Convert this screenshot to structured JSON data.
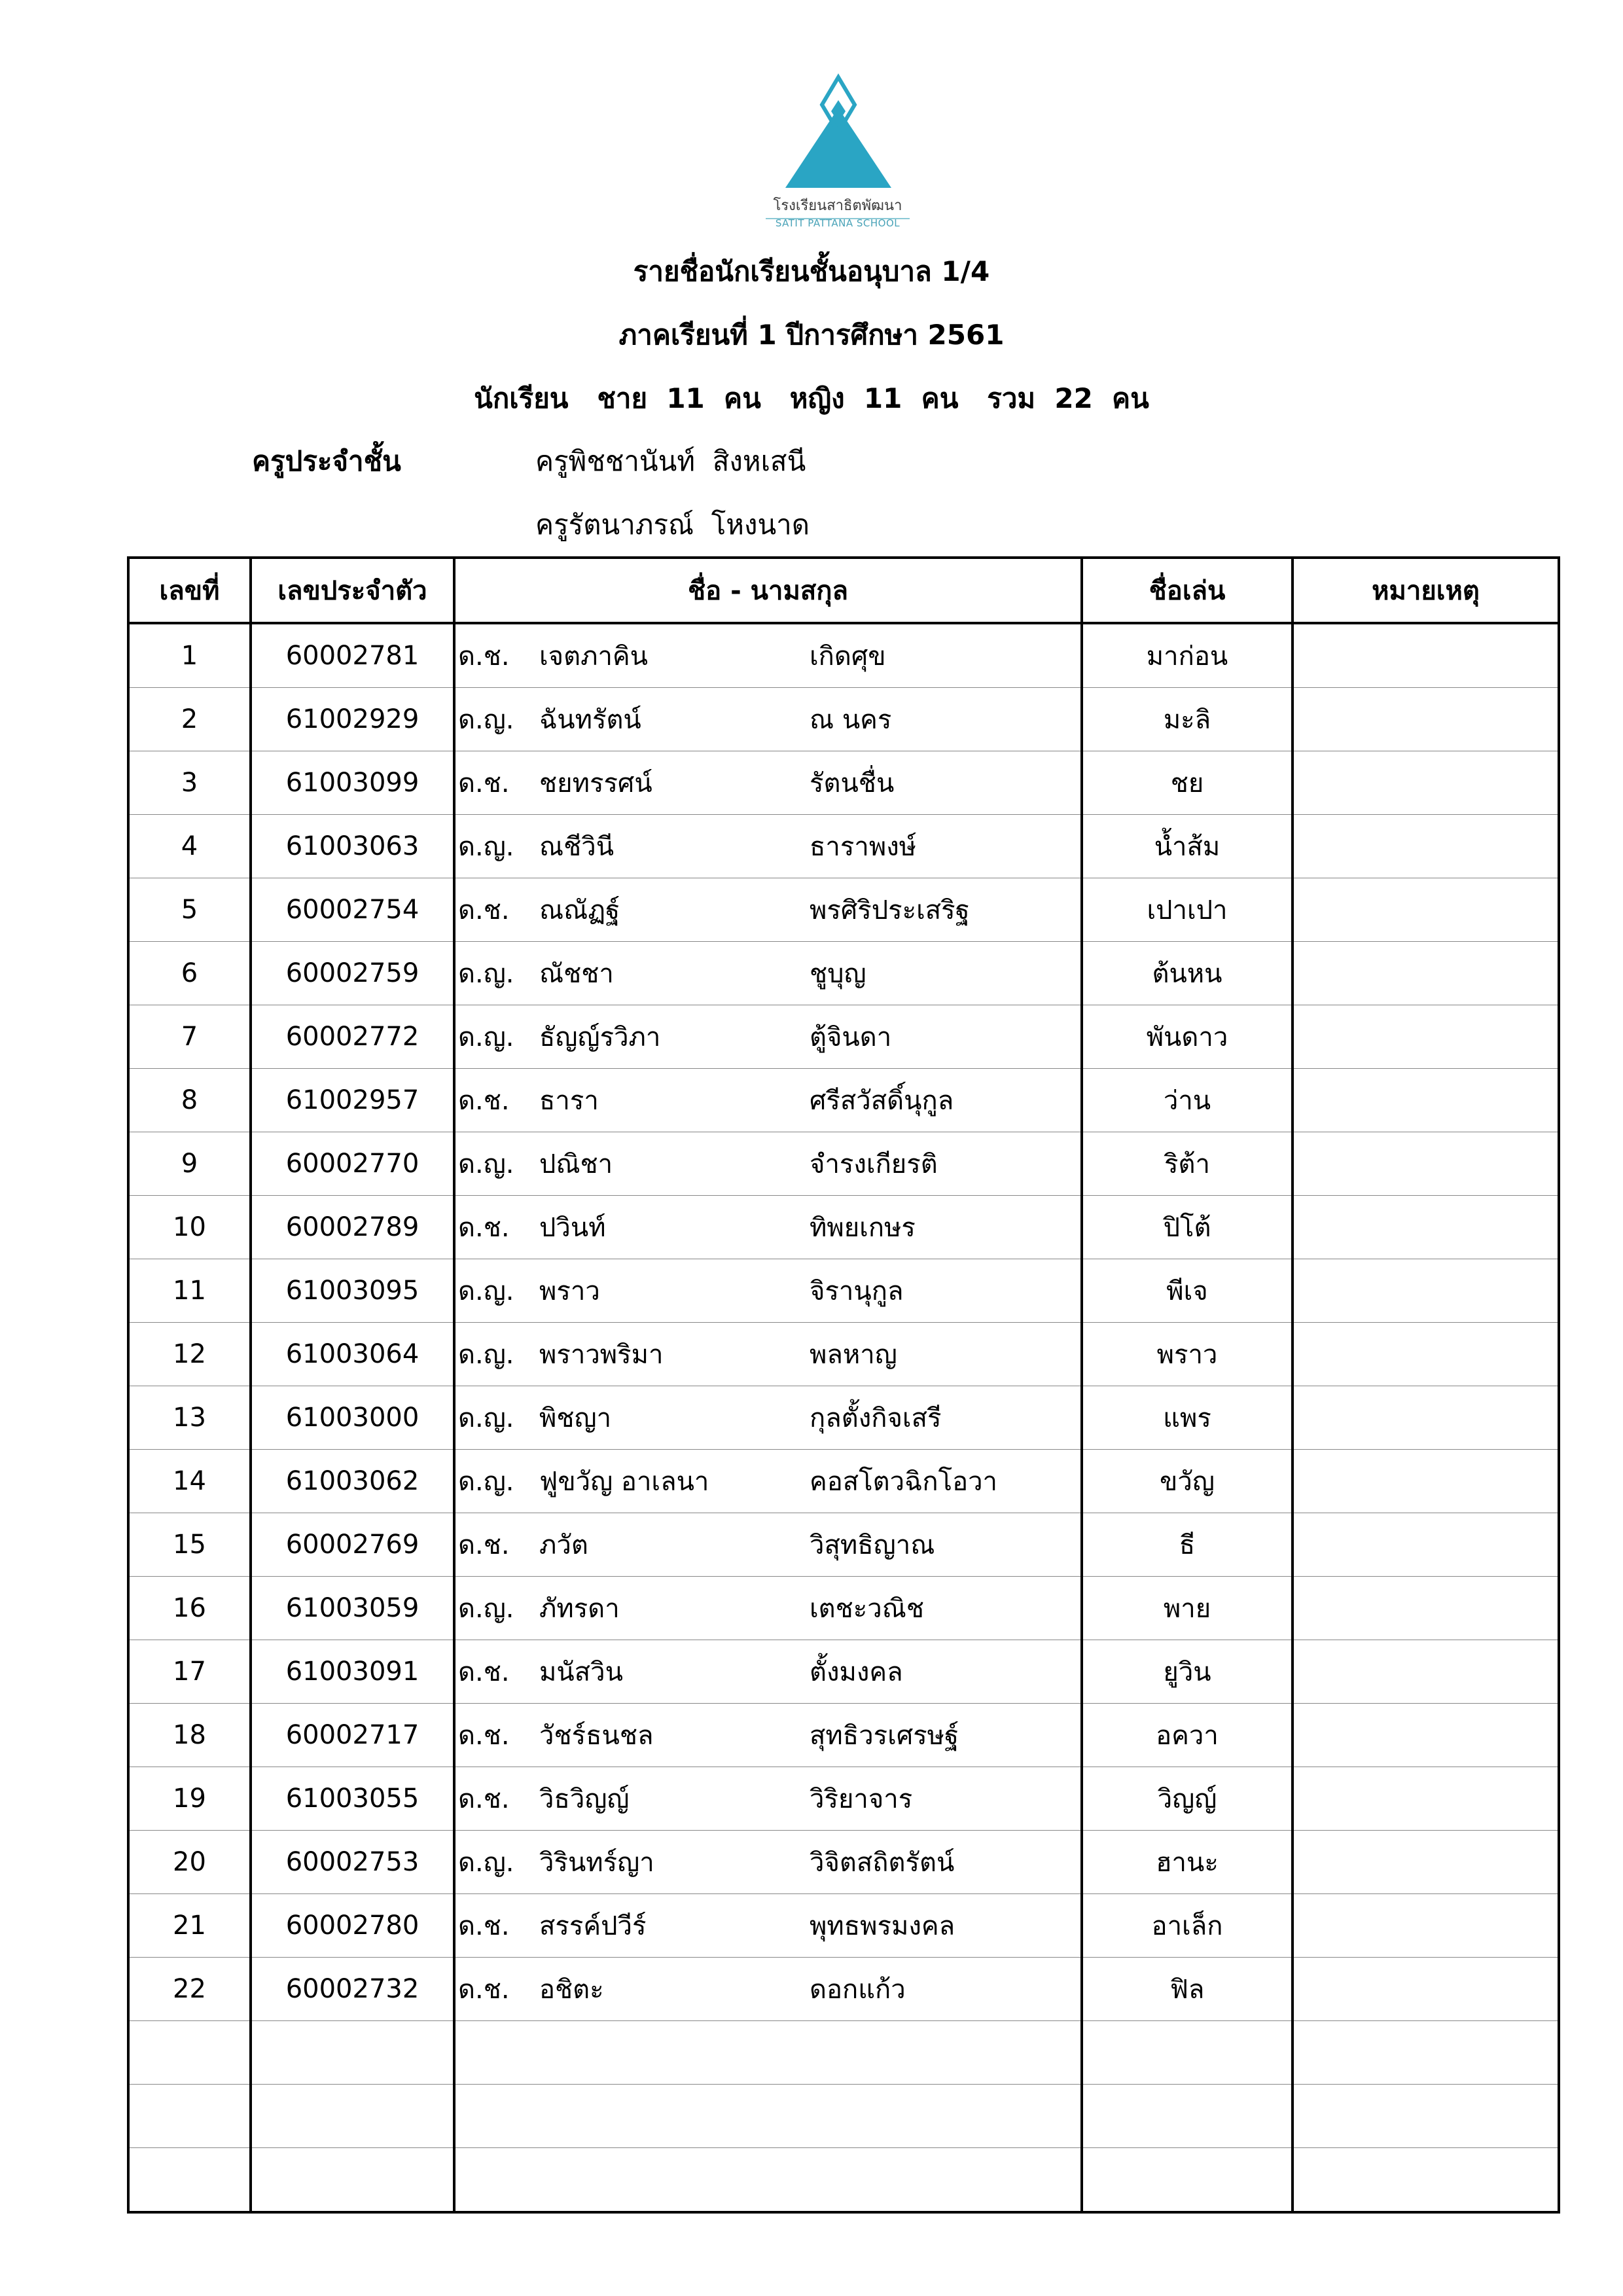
{
  "logo": {
    "name_th": "โรงเรียนสาธิตพัฒนา",
    "name_en": "SATIT PATTANA SCHOOL",
    "color": "#2aa5c4"
  },
  "header": {
    "title": "รายชื่อนักเรียนชั้นอนุบาล 1/4",
    "term": "ภาคเรียนที่ 1  ปีการศึกษา  2561",
    "counts": "นักเรียน   ชาย  11  คน   หญิง  11  คน   รวม  22  คน",
    "teacher_label": "ครูประจำชั้น",
    "teachers": [
      "ครูพิชชานันท์  สิงหเสนี",
      "ครูรัตนาภรณ์  โหงนาด"
    ]
  },
  "table": {
    "columns": [
      "เลขที่",
      "เลขประจำตัว",
      "ชื่อ - นามสกุล",
      "ชื่อเล่น",
      "หมายเหตุ"
    ],
    "rows": [
      {
        "no": "1",
        "id": "60002781",
        "prefix": "ด.ช.",
        "first": "เจตภาคิน",
        "last": "เกิดศุข",
        "nick": "มาก่อน",
        "note": ""
      },
      {
        "no": "2",
        "id": "61002929",
        "prefix": "ด.ญ.",
        "first": "ฉันทรัตน์",
        "last": "ณ นคร",
        "nick": "มะลิ",
        "note": ""
      },
      {
        "no": "3",
        "id": "61003099",
        "prefix": "ด.ช.",
        "first": "ชยทรรศน์",
        "last": "รัตนชื่น",
        "nick": "ชย",
        "note": ""
      },
      {
        "no": "4",
        "id": "61003063",
        "prefix": "ด.ญ.",
        "first": "ณชีวินี",
        "last": "ธาราพงษ์",
        "nick": "น้ำส้ม",
        "note": ""
      },
      {
        "no": "5",
        "id": "60002754",
        "prefix": "ด.ช.",
        "first": "ณณัฏฐ์",
        "last": "พรศิริประเสริฐ",
        "nick": "เปาเปา",
        "note": ""
      },
      {
        "no": "6",
        "id": "60002759",
        "prefix": "ด.ญ.",
        "first": "ณัชชา",
        "last": "ชูบุญ",
        "nick": "ต้นหน",
        "note": ""
      },
      {
        "no": "7",
        "id": "60002772",
        "prefix": "ด.ญ.",
        "first": "ธัญญ์รวิภา",
        "last": "ตู้จินดา",
        "nick": "พันดาว",
        "note": ""
      },
      {
        "no": "8",
        "id": "61002957",
        "prefix": "ด.ช.",
        "first": "ธารา",
        "last": "ศรีสวัสดิ์นุกูล",
        "nick": "ว่าน",
        "note": ""
      },
      {
        "no": "9",
        "id": "60002770",
        "prefix": "ด.ญ.",
        "first": "ปณิชา",
        "last": "จำรงเกียรติ",
        "nick": "ริต้า",
        "note": ""
      },
      {
        "no": "10",
        "id": "60002789",
        "prefix": "ด.ช.",
        "first": "ปวินท์",
        "last": "ทิพยเกษร",
        "nick": "ปิโต้",
        "note": ""
      },
      {
        "no": "11",
        "id": "61003095",
        "prefix": "ด.ญ.",
        "first": "พราว",
        "last": "จิรานุกูล",
        "nick": "พีเจ",
        "note": ""
      },
      {
        "no": "12",
        "id": "61003064",
        "prefix": "ด.ญ.",
        "first": "พราวพริมา",
        "last": "พลหาญ",
        "nick": "พราว",
        "note": ""
      },
      {
        "no": "13",
        "id": "61003000",
        "prefix": "ด.ญ.",
        "first": "พิชญา",
        "last": "กุลตั้งกิจเสรี",
        "nick": "แพร",
        "note": ""
      },
      {
        "no": "14",
        "id": "61003062",
        "prefix": "ด.ญ.",
        "first": "ฟูขวัญ อาเลนา",
        "last": "คอสโตวฉิกโอวา",
        "nick": "ขวัญ",
        "note": ""
      },
      {
        "no": "15",
        "id": "60002769",
        "prefix": "ด.ช.",
        "first": "ภวัต",
        "last": "วิสุทธิญาณ",
        "nick": "ธี",
        "note": ""
      },
      {
        "no": "16",
        "id": "61003059",
        "prefix": "ด.ญ.",
        "first": "ภัทรดา",
        "last": "เตชะวณิช",
        "nick": "พาย",
        "note": ""
      },
      {
        "no": "17",
        "id": "61003091",
        "prefix": "ด.ช.",
        "first": "มนัสวิน",
        "last": "ตั้งมงคล",
        "nick": "ยูวิน",
        "note": ""
      },
      {
        "no": "18",
        "id": "60002717",
        "prefix": "ด.ช.",
        "first": "วัชร์ธนชล",
        "last": "สุทธิวรเศรษฐ์",
        "nick": "อควา",
        "note": ""
      },
      {
        "no": "19",
        "id": "61003055",
        "prefix": "ด.ช.",
        "first": "วิธวิญญ์",
        "last": "วิริยาจาร",
        "nick": "วิญญ์",
        "note": ""
      },
      {
        "no": "20",
        "id": "60002753",
        "prefix": "ด.ญ.",
        "first": "วิรินทร์ญา",
        "last": "วิจิตสถิตรัตน์",
        "nick": "ฮานะ",
        "note": ""
      },
      {
        "no": "21",
        "id": "60002780",
        "prefix": "ด.ช.",
        "first": "สรรค์ปวีร์",
        "last": "พุทธพรมงคล",
        "nick": "อาเล็ก",
        "note": ""
      },
      {
        "no": "22",
        "id": "60002732",
        "prefix": "ด.ช.",
        "first": "อชิตะ",
        "last": "ดอกแก้ว",
        "nick": "ฟิล",
        "note": ""
      }
    ],
    "empty_rows": 3
  }
}
